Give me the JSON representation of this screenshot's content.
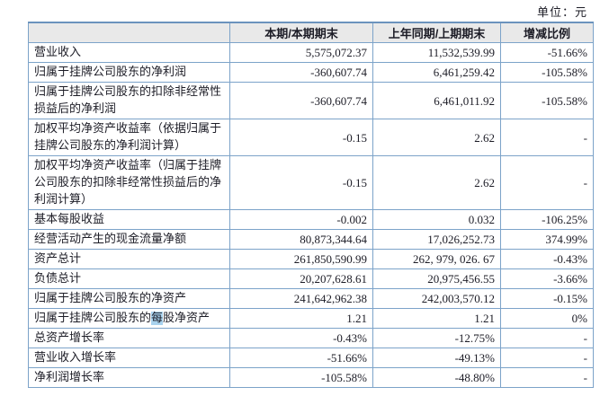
{
  "unit_label": "单位：元",
  "colors": {
    "border": "#7ca3c9",
    "border_dark": "#6b93bd",
    "header_bg": "#e9e9e9",
    "highlight": "#a8d2ee",
    "text": "#1c1c26"
  },
  "table": {
    "columns": [
      "",
      "本期/本期期末",
      "上年同期/上期期末",
      "增减比例"
    ],
    "rows": [
      {
        "label": "营业收入",
        "current": "5,575,072.37",
        "prior": "11,532,539.99",
        "change": "-51.66%"
      },
      {
        "label": "归属于挂牌公司股东的净利润",
        "current": "-360,607.74",
        "prior": "6,461,259.42",
        "change": "-105.58%"
      },
      {
        "label": "归属于挂牌公司股东的扣除非经常性损益后的净利润",
        "current": "-360,607.74",
        "prior": "6,461,011.92",
        "change": "-105.58%"
      },
      {
        "label": "加权平均净资产收益率（依据归属于挂牌公司股东的净利润计算）",
        "current": "-0.15",
        "prior": "2.62",
        "change": "-",
        "valign": "top"
      },
      {
        "label": "加权平均净资产收益率（归属于挂牌公司股东的扣除非经常性损益后的净利润计算）",
        "current": "-0.15",
        "prior": "2.62",
        "change": "-",
        "valign": "top"
      },
      {
        "label": "基本每股收益",
        "current": "-0.002",
        "prior": "0.032",
        "change": "-106.25%"
      },
      {
        "label": "经营活动产生的现金流量净额",
        "current": "80,873,344.64",
        "prior": "17,026,252.73",
        "change": "374.99%"
      },
      {
        "label": "资产总计",
        "current": "261,850,590.99",
        "prior": "262, 979, 026. 67",
        "change": "-0.43%"
      },
      {
        "label": "负债总计",
        "current": "20,207,628.61",
        "prior": "20,975,456.55",
        "change": "-3.66%"
      },
      {
        "label": "归属于挂牌公司股东的净资产",
        "current": "241,642,962.38",
        "prior": "242,003,570.12",
        "change": "-0.15%"
      },
      {
        "label": "归属于挂牌公司股东的每股净资产",
        "label_parts": [
          {
            "text": "归属于挂牌公司股东的"
          },
          {
            "text": "每",
            "highlight": true
          },
          {
            "text": "股净资产"
          }
        ],
        "current": "1.21",
        "prior": "1.21",
        "change": "0%"
      },
      {
        "label": "总资产增长率",
        "current": "-0.43%",
        "prior": "-12.75%",
        "change": "-"
      },
      {
        "label": "营业收入增长率",
        "current": "-51.66%",
        "prior": "-49.13%",
        "change": "-"
      },
      {
        "label": "净利润增长率",
        "current": "-105.58%",
        "prior": "-48.80%",
        "change": "-"
      }
    ]
  }
}
